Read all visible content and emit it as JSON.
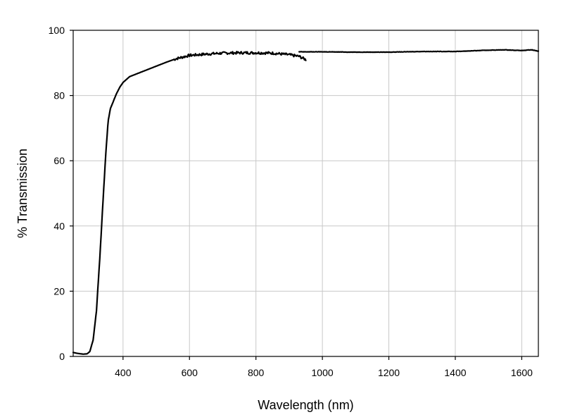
{
  "chart_data": {
    "type": "line",
    "title": "",
    "xlabel": "Wavelength (nm)",
    "ylabel": "% Transmission",
    "xlim": [
      250,
      1650
    ],
    "ylim": [
      0,
      100
    ],
    "x_ticks": [
      400,
      600,
      800,
      1000,
      1200,
      1400,
      1600
    ],
    "y_ticks": [
      0,
      20,
      40,
      60,
      80,
      100
    ],
    "grid": true,
    "legend": "none",
    "series": [
      {
        "color": "#000000",
        "noise": 0.4,
        "points": [
          [
            250,
            1.2
          ],
          [
            265,
            0.9
          ],
          [
            280,
            0.7
          ],
          [
            292,
            0.8
          ],
          [
            300,
            1.5
          ],
          [
            310,
            5
          ],
          [
            320,
            14
          ],
          [
            330,
            30
          ],
          [
            340,
            48
          ],
          [
            348,
            62
          ],
          [
            355,
            72
          ],
          [
            362,
            76
          ],
          [
            370,
            78
          ],
          [
            380,
            80.5
          ],
          [
            390,
            82.5
          ],
          [
            400,
            84
          ],
          [
            420,
            85.8
          ],
          [
            450,
            87
          ],
          [
            480,
            88.2
          ],
          [
            500,
            89
          ],
          [
            530,
            90.2
          ],
          [
            560,
            91.3
          ],
          [
            600,
            92.3
          ],
          [
            650,
            92.7
          ],
          [
            700,
            93
          ],
          [
            750,
            93.1
          ],
          [
            800,
            93.1
          ],
          [
            850,
            93
          ],
          [
            900,
            92.5
          ],
          [
            930,
            92
          ],
          [
            950,
            91
          ]
        ]
      },
      {
        "color": "#000000",
        "noise": 0.05,
        "points": [
          [
            930,
            93.4
          ],
          [
            1000,
            93.4
          ],
          [
            1100,
            93.3
          ],
          [
            1200,
            93.3
          ],
          [
            1300,
            93.5
          ],
          [
            1400,
            93.5
          ],
          [
            1450,
            93.7
          ],
          [
            1500,
            93.9
          ],
          [
            1550,
            94
          ],
          [
            1600,
            93.8
          ],
          [
            1630,
            94
          ],
          [
            1650,
            93.6
          ]
        ]
      }
    ]
  }
}
